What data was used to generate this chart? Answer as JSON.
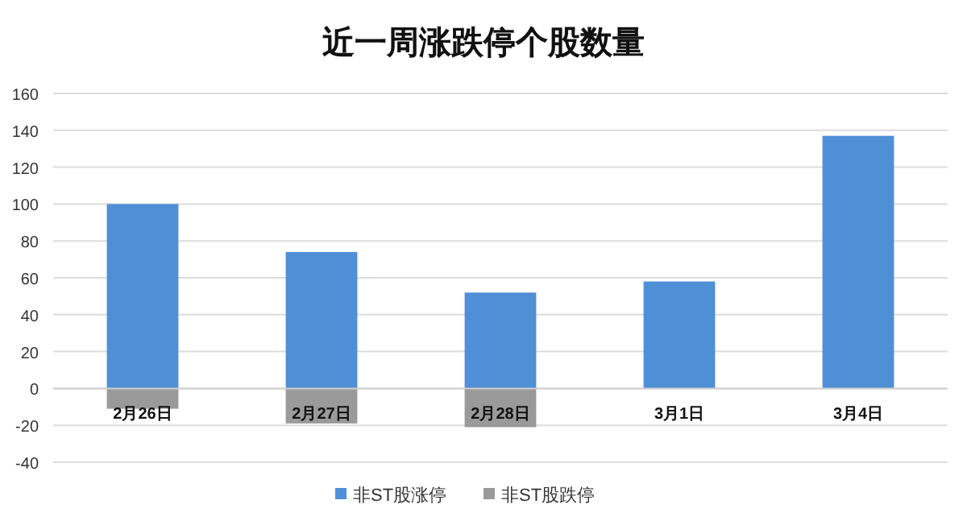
{
  "chart_data": {
    "type": "bar",
    "title": "近一周涨跌停个股数量",
    "categories": [
      "2月26日",
      "2月27日",
      "2月28日",
      "3月1日",
      "3月4日"
    ],
    "series": [
      {
        "name": "非ST股涨停",
        "color": "#4f8fd6",
        "values": [
          100,
          74,
          52,
          58,
          137
        ]
      },
      {
        "name": "非ST股跌停",
        "color": "#9a9a9a",
        "values": [
          -11,
          -19,
          -21,
          null,
          null
        ]
      }
    ],
    "ylim": [
      -40,
      160
    ],
    "yticks": [
      -40,
      -20,
      0,
      20,
      40,
      60,
      80,
      100,
      120,
      140,
      160
    ],
    "stacked": true,
    "grid": "y",
    "legend": "bottom"
  }
}
